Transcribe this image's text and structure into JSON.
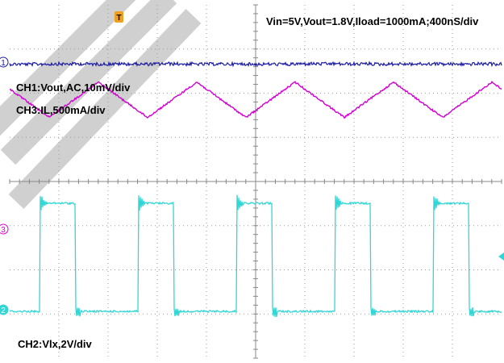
{
  "header_text": "Vin=5V,Vout=1.8V,Iload=1000mA;400nS/div",
  "trigger_marker": "T",
  "labels": {
    "ch1": "CH1:Vout,AC,10mV/div",
    "ch3": "CH3:IL,500mA/div",
    "ch2": "CH2:Vlx,2V/div"
  },
  "channel_markers": {
    "ch1": "1",
    "ch3": "3",
    "ch2": "2"
  },
  "colors": {
    "ch1": "#1a1aa6",
    "ch3": "#d400d4",
    "ch2": "#33d6d6",
    "trigger": "#f0a020",
    "grid": "#9a9a9a",
    "watermark": "#c8c8c8"
  },
  "chart_data": {
    "type": "line",
    "time_per_div_ns": 400,
    "grid": {
      "horizontal_divisions": 10,
      "vertical_divisions": 8
    },
    "series": [
      {
        "name": "CH1:Vout,AC,10mV/div",
        "waveform": "ripple noise",
        "volts_per_div": 0.01,
        "coupling": "AC",
        "offset_div": 3.0,
        "amplitude_div": 0.2
      },
      {
        "name": "CH3:IL,500mA/div",
        "waveform": "triangle",
        "amps_per_div": 0.5,
        "offset_div": 1.2,
        "period_ns": 800,
        "peak_to_peak_div": 0.8
      },
      {
        "name": "CH2:Vlx,2V/div",
        "waveform": "square",
        "volts_per_div": 2,
        "period_ns": 800,
        "duty": 0.36,
        "high_div": 4.9,
        "low_div": 0.0
      }
    ]
  }
}
